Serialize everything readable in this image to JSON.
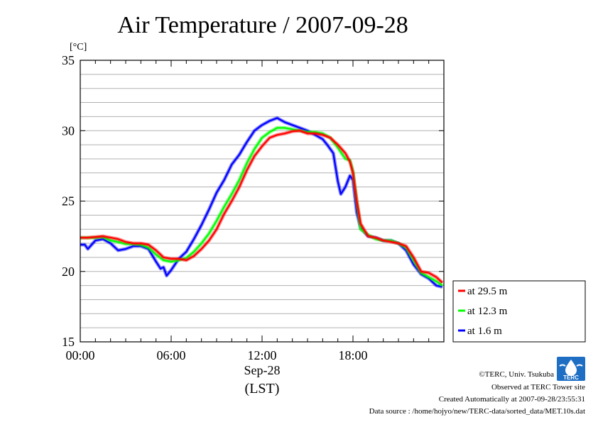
{
  "chart_data": {
    "type": "line",
    "title": "Air Temperature / 2007-09-28",
    "ylabel": "[°C]",
    "ylim": [
      15,
      35
    ],
    "yticks": [
      15,
      20,
      25,
      30,
      35
    ],
    "xlim": [
      0,
      24
    ],
    "xticks": [
      {
        "hour": 0,
        "label": "00:00"
      },
      {
        "hour": 6,
        "label": "06:00"
      },
      {
        "hour": 12,
        "label": "12:00"
      },
      {
        "hour": 18,
        "label": "18:00"
      }
    ],
    "xsub": "Sep-28",
    "xlabel": "(LST)",
    "grid": true,
    "legend_position": "right",
    "series": [
      {
        "name": "at 29.5 m",
        "color": "#ff0000",
        "x": [
          0,
          0.5,
          1,
          1.5,
          2,
          2.5,
          3,
          3.5,
          4,
          4.5,
          5,
          5.5,
          6,
          6.5,
          7,
          7.5,
          8,
          8.5,
          9,
          9.5,
          10,
          10.5,
          11,
          11.5,
          12,
          12.5,
          13,
          13.5,
          14,
          14.5,
          15,
          15.5,
          16,
          16.5,
          17,
          17.5,
          17.8,
          18,
          18.25,
          18.5,
          19,
          19.5,
          20,
          20.5,
          21,
          21.5,
          22,
          22.5,
          23,
          23.5,
          23.9
        ],
        "y": [
          22.4,
          22.4,
          22.45,
          22.5,
          22.4,
          22.3,
          22.1,
          22.0,
          22.0,
          21.9,
          21.5,
          21.0,
          20.9,
          20.9,
          20.8,
          21.1,
          21.6,
          22.2,
          23.0,
          24.1,
          25.0,
          26.0,
          27.2,
          28.2,
          28.9,
          29.5,
          29.7,
          29.8,
          29.95,
          30.0,
          29.8,
          29.8,
          29.7,
          29.5,
          29.0,
          28.4,
          27.8,
          27.0,
          25.0,
          23.4,
          22.5,
          22.4,
          22.2,
          22.1,
          22.0,
          21.8,
          21.0,
          20.0,
          19.9,
          19.6,
          19.2
        ]
      },
      {
        "name": "at 12.3 m",
        "color": "#00ff00",
        "x": [
          0,
          0.5,
          1,
          1.5,
          2,
          2.5,
          3,
          3.5,
          4,
          4.5,
          5,
          5.5,
          6,
          6.5,
          7,
          7.5,
          8,
          8.5,
          9,
          9.5,
          10,
          10.5,
          11,
          11.5,
          12,
          12.5,
          13,
          13.5,
          14,
          14.5,
          15,
          15.5,
          16,
          16.5,
          17,
          17.5,
          17.8,
          18,
          18.25,
          18.5,
          19,
          19.5,
          20,
          20.5,
          21,
          21.5,
          22,
          22.5,
          23,
          23.5,
          23.9
        ],
        "y": [
          22.4,
          22.4,
          22.4,
          22.45,
          22.2,
          22.1,
          21.95,
          21.95,
          21.9,
          21.7,
          21.2,
          20.8,
          20.7,
          20.8,
          20.95,
          21.4,
          22.0,
          22.7,
          23.6,
          24.6,
          25.5,
          26.5,
          27.7,
          28.7,
          29.5,
          29.9,
          30.2,
          30.2,
          30.1,
          30.0,
          29.9,
          29.9,
          29.8,
          29.5,
          28.8,
          28.0,
          27.9,
          27.1,
          25.0,
          23.0,
          22.6,
          22.3,
          22.2,
          22.2,
          22.0,
          21.7,
          20.8,
          19.9,
          19.6,
          19.3,
          19.0
        ]
      },
      {
        "name": "at 1.6 m",
        "color": "#0000ff",
        "x": [
          0,
          0.3,
          0.5,
          1,
          1.5,
          2,
          2.5,
          3,
          3.5,
          4,
          4.5,
          5,
          5.3,
          5.5,
          5.7,
          6,
          6.5,
          7,
          7.5,
          8,
          8.5,
          9,
          9.5,
          10,
          10.5,
          11,
          11.5,
          12,
          12.5,
          13,
          13.5,
          14,
          14.5,
          15,
          15.5,
          16,
          16.3,
          16.7,
          17,
          17.2,
          17.5,
          17.8,
          18,
          18.25,
          18.5,
          19,
          19.5,
          20,
          20.5,
          21,
          21.5,
          22,
          22.5,
          23,
          23.5,
          23.9
        ],
        "y": [
          21.9,
          21.9,
          21.6,
          22.2,
          22.3,
          22.0,
          21.5,
          21.6,
          21.8,
          21.8,
          21.6,
          20.7,
          20.2,
          20.3,
          19.7,
          20.1,
          20.9,
          21.4,
          22.3,
          23.3,
          24.4,
          25.6,
          26.5,
          27.6,
          28.3,
          29.2,
          30.0,
          30.4,
          30.7,
          30.9,
          30.6,
          30.4,
          30.2,
          30.0,
          29.7,
          29.4,
          29.0,
          28.4,
          26.4,
          25.5,
          26.0,
          26.8,
          26.5,
          24.2,
          23.1,
          22.5,
          22.4,
          22.2,
          22.2,
          22.0,
          21.5,
          20.5,
          19.8,
          19.5,
          19.0,
          18.9
        ]
      }
    ]
  },
  "footer": {
    "copyright": "©TERC, Univ. Tsukuba",
    "site": "Observed at TERC Tower site",
    "created": "Created Automatically at 2007-09-28/23:55:31",
    "source": "Data source : /home/hojyo/new/TERC-data/sorted_data/MET.10s.dat"
  },
  "logo": {
    "text": "TERC",
    "color": "#1e6fc4"
  }
}
